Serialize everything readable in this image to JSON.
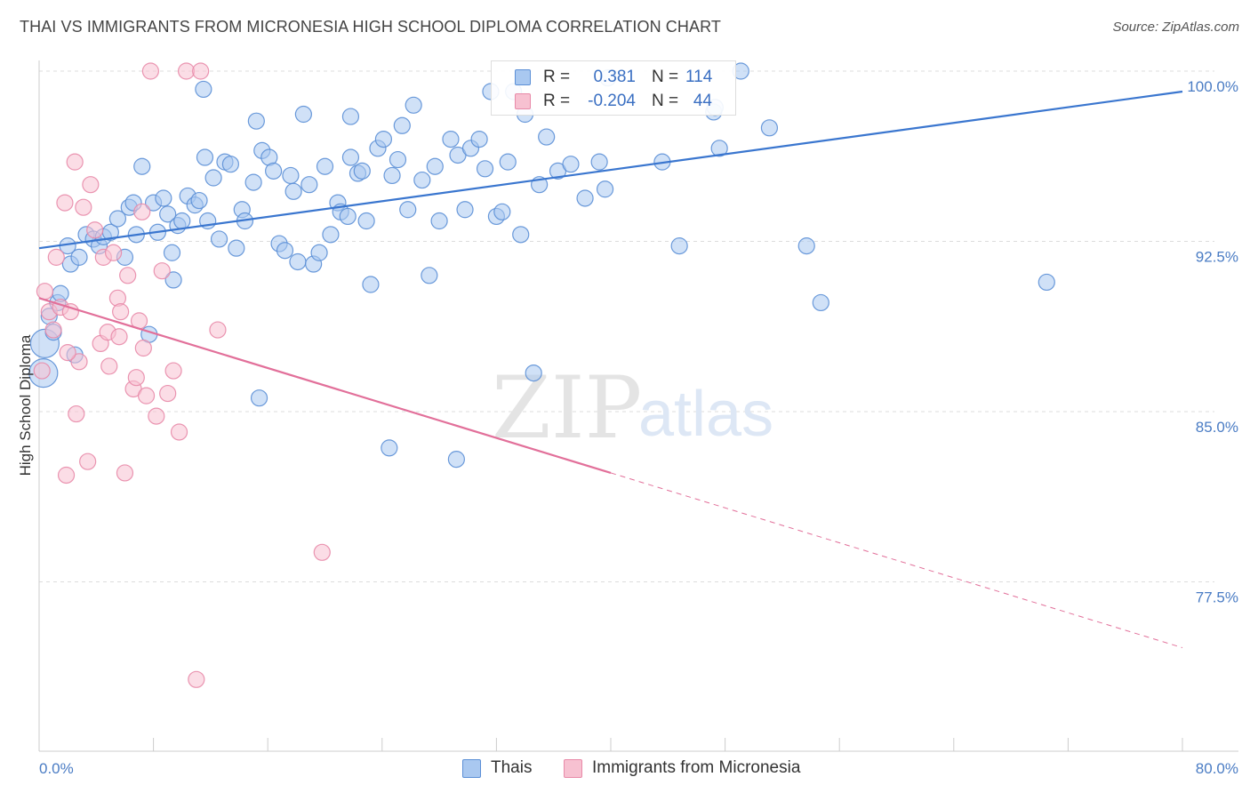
{
  "title": "THAI VS IMMIGRANTS FROM MICRONESIA HIGH SCHOOL DIPLOMA CORRELATION CHART",
  "source": "Source: ZipAtlas.com",
  "watermark": {
    "zip": "ZIP",
    "atlas": "atlas"
  },
  "legend_top": {
    "rows": [
      {
        "r_label": "R =",
        "r_value": "0.381",
        "n_label": "N =",
        "n_value": "114"
      },
      {
        "r_label": "R =",
        "r_value": "-0.204",
        "n_label": "N =",
        "n_value": "44"
      }
    ]
  },
  "legend_bottom": [
    "Thais",
    "Immigrants from Micronesia"
  ],
  "colors": {
    "thai_fill": "#a9c8f0",
    "thai_stroke": "#5b8fd6",
    "thai_line": "#3a76cf",
    "micro_fill": "#f7c1d1",
    "micro_stroke": "#e889a8",
    "micro_line": "#e2709a",
    "tick_text": "#4a7cc4",
    "grid": "#dddddd"
  },
  "chart_data": {
    "type": "scatter",
    "title": "THAI VS IMMIGRANTS FROM MICRONESIA HIGH SCHOOL DIPLOMA CORRELATION CHART",
    "ylabel": "High School Diploma",
    "xlabel": "",
    "xlim": [
      0,
      80
    ],
    "ylim": [
      72.0,
      100.8
    ],
    "x_tick_labels": [
      "0.0%",
      "80.0%"
    ],
    "y_tick_values": [
      77.5,
      85.0,
      92.5,
      100.0
    ],
    "y_tick_labels": [
      "77.5%",
      "85.0%",
      "92.5%",
      "100.0%"
    ],
    "grid": true,
    "series": [
      {
        "name": "Thais",
        "trend": {
          "x": [
            0,
            80
          ],
          "y": [
            92.2,
            99.1
          ],
          "dashed_from": null
        },
        "points": [
          [
            0.3,
            86.7
          ],
          [
            0.4,
            88.0
          ],
          [
            0.7,
            89.2
          ],
          [
            1.0,
            88.5
          ],
          [
            1.3,
            89.8
          ],
          [
            1.5,
            90.2
          ],
          [
            2.0,
            92.3
          ],
          [
            2.2,
            91.5
          ],
          [
            2.5,
            87.5
          ],
          [
            2.8,
            91.8
          ],
          [
            3.3,
            92.8
          ],
          [
            3.8,
            92.6
          ],
          [
            4.2,
            92.3
          ],
          [
            4.5,
            92.7
          ],
          [
            5.0,
            92.9
          ],
          [
            5.5,
            93.5
          ],
          [
            6.3,
            94.0
          ],
          [
            6.6,
            94.2
          ],
          [
            6.8,
            92.8
          ],
          [
            7.2,
            95.8
          ],
          [
            7.7,
            88.4
          ],
          [
            8.0,
            94.2
          ],
          [
            8.3,
            92.9
          ],
          [
            8.7,
            94.4
          ],
          [
            9.0,
            93.7
          ],
          [
            9.4,
            90.8
          ],
          [
            9.7,
            93.2
          ],
          [
            10.0,
            93.4
          ],
          [
            10.4,
            94.5
          ],
          [
            10.9,
            94.1
          ],
          [
            11.2,
            94.3
          ],
          [
            11.6,
            96.2
          ],
          [
            11.8,
            93.4
          ],
          [
            12.2,
            95.3
          ],
          [
            12.6,
            92.6
          ],
          [
            13.0,
            96.0
          ],
          [
            13.4,
            95.9
          ],
          [
            13.8,
            92.2
          ],
          [
            14.2,
            93.9
          ],
          [
            14.4,
            93.4
          ],
          [
            15.0,
            95.1
          ],
          [
            15.4,
            85.6
          ],
          [
            15.6,
            96.5
          ],
          [
            16.1,
            96.2
          ],
          [
            16.4,
            95.6
          ],
          [
            16.8,
            92.4
          ],
          [
            17.2,
            92.1
          ],
          [
            17.6,
            95.4
          ],
          [
            17.8,
            94.7
          ],
          [
            18.1,
            91.6
          ],
          [
            18.5,
            98.1
          ],
          [
            18.9,
            95.0
          ],
          [
            19.2,
            91.5
          ],
          [
            19.6,
            92.0
          ],
          [
            20.0,
            95.8
          ],
          [
            20.4,
            92.8
          ],
          [
            20.9,
            94.2
          ],
          [
            21.1,
            93.8
          ],
          [
            21.6,
            93.6
          ],
          [
            21.8,
            96.2
          ],
          [
            22.3,
            95.5
          ],
          [
            22.6,
            95.6
          ],
          [
            22.9,
            93.4
          ],
          [
            23.2,
            90.6
          ],
          [
            23.7,
            96.6
          ],
          [
            24.1,
            97.0
          ],
          [
            24.7,
            95.4
          ],
          [
            25.1,
            96.1
          ],
          [
            25.4,
            97.6
          ],
          [
            25.8,
            93.9
          ],
          [
            26.2,
            98.5
          ],
          [
            26.8,
            95.2
          ],
          [
            27.3,
            91.0
          ],
          [
            27.7,
            95.8
          ],
          [
            28.0,
            93.4
          ],
          [
            28.8,
            97.0
          ],
          [
            29.3,
            96.3
          ],
          [
            29.8,
            93.9
          ],
          [
            30.2,
            96.6
          ],
          [
            30.8,
            97.0
          ],
          [
            31.2,
            95.7
          ],
          [
            31.6,
            99.1
          ],
          [
            32.0,
            93.6
          ],
          [
            32.4,
            93.8
          ],
          [
            32.8,
            96.0
          ],
          [
            33.2,
            99.1
          ],
          [
            33.7,
            92.8
          ],
          [
            34.0,
            98.1
          ],
          [
            34.6,
            86.7
          ],
          [
            35.0,
            95.0
          ],
          [
            35.5,
            97.1
          ],
          [
            36.3,
            95.6
          ],
          [
            37.2,
            95.9
          ],
          [
            38.2,
            94.4
          ],
          [
            39.2,
            96.0
          ],
          [
            39.6,
            94.8
          ],
          [
            43.6,
            96.0
          ],
          [
            44.8,
            92.3
          ],
          [
            47.2,
            98.2
          ],
          [
            47.3,
            98.4
          ],
          [
            47.6,
            96.6
          ],
          [
            49.1,
            100.0
          ],
          [
            51.1,
            97.5
          ],
          [
            53.7,
            92.3
          ],
          [
            54.7,
            89.8
          ],
          [
            70.5,
            90.7
          ],
          [
            24.5,
            83.4
          ],
          [
            29.2,
            82.9
          ],
          [
            39.8,
            99.7
          ],
          [
            11.5,
            99.2
          ],
          [
            21.8,
            98.0
          ],
          [
            15.2,
            97.8
          ],
          [
            6.0,
            91.8
          ],
          [
            9.3,
            92.0
          ]
        ]
      },
      {
        "name": "Immigrants from Micronesia",
        "trend": {
          "x": [
            0,
            80
          ],
          "y": [
            90.0,
            74.6
          ],
          "dashed_from": 40
        },
        "points": [
          [
            0.2,
            86.8
          ],
          [
            0.4,
            90.3
          ],
          [
            0.7,
            89.4
          ],
          [
            1.0,
            88.6
          ],
          [
            1.2,
            91.8
          ],
          [
            1.5,
            89.6
          ],
          [
            1.8,
            94.2
          ],
          [
            2.2,
            89.4
          ],
          [
            2.5,
            96.0
          ],
          [
            2.8,
            87.2
          ],
          [
            3.1,
            94.0
          ],
          [
            3.6,
            95.0
          ],
          [
            3.9,
            93.0
          ],
          [
            4.3,
            88.0
          ],
          [
            4.5,
            91.8
          ],
          [
            4.8,
            88.5
          ],
          [
            5.2,
            92.0
          ],
          [
            5.5,
            90.0
          ],
          [
            5.7,
            89.4
          ],
          [
            6.0,
            82.3
          ],
          [
            6.2,
            91.0
          ],
          [
            6.6,
            86.0
          ],
          [
            7.0,
            89.0
          ],
          [
            7.2,
            93.8
          ],
          [
            7.5,
            85.7
          ],
          [
            7.8,
            100.0
          ],
          [
            8.2,
            84.8
          ],
          [
            8.6,
            91.2
          ],
          [
            9.0,
            85.8
          ],
          [
            9.4,
            86.8
          ],
          [
            9.8,
            84.1
          ],
          [
            10.3,
            100.0
          ],
          [
            11.0,
            73.2
          ],
          [
            11.3,
            100.0
          ],
          [
            12.5,
            88.6
          ],
          [
            19.8,
            78.8
          ],
          [
            2.0,
            87.6
          ],
          [
            2.6,
            84.9
          ],
          [
            3.4,
            82.8
          ],
          [
            1.9,
            82.2
          ],
          [
            4.9,
            87.0
          ],
          [
            5.6,
            88.3
          ],
          [
            7.3,
            87.8
          ],
          [
            6.8,
            86.5
          ]
        ]
      }
    ]
  }
}
